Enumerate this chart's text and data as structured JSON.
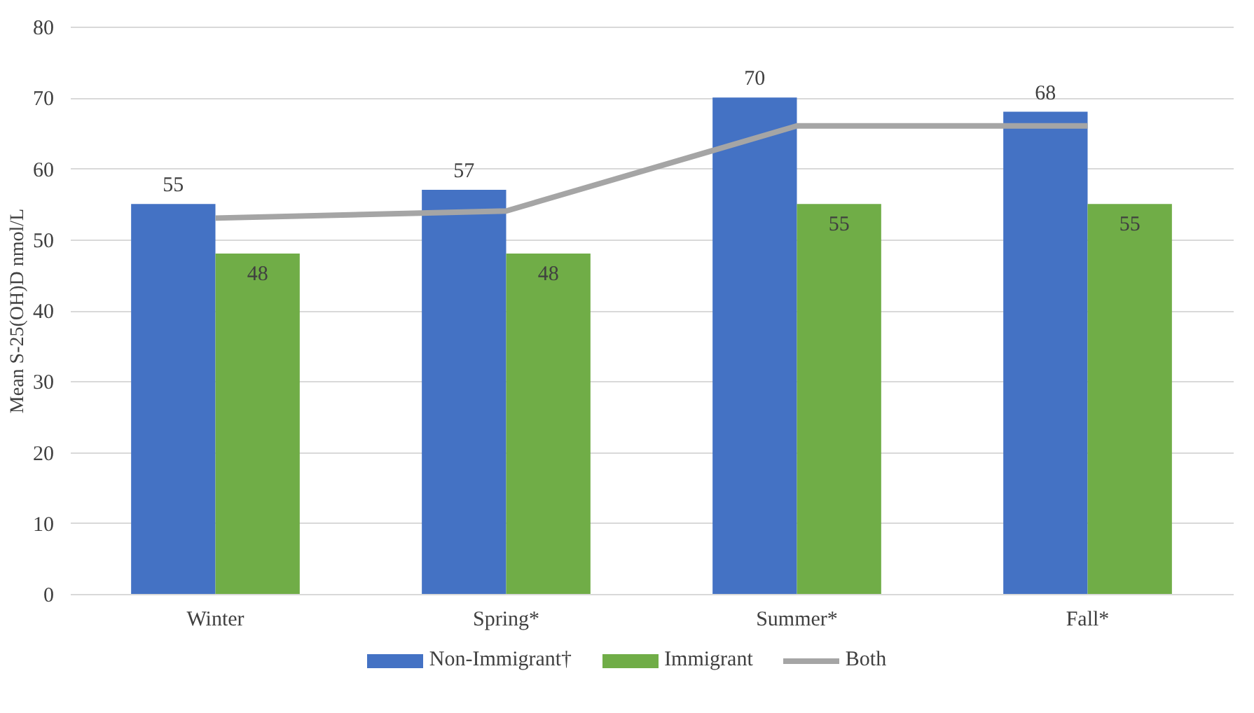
{
  "chart_data": {
    "type": "bar",
    "ylabel": "Mean S-25(OH)D nmol/L",
    "categories": [
      "Winter",
      "Spring*",
      "Summer*",
      "Fall*"
    ],
    "series": [
      {
        "name": "Non-Immigrant†",
        "color": "#4472c4",
        "values": [
          55,
          57,
          70,
          68
        ],
        "value_labels": [
          "55",
          "57",
          "70",
          "68"
        ]
      },
      {
        "name": "Immigrant",
        "color": "#70ad47",
        "values": [
          48,
          48,
          55,
          55
        ],
        "value_labels": [
          "48",
          "48",
          "55",
          "55"
        ]
      },
      {
        "name": "Both",
        "type": "line",
        "color": "#a5a5a5",
        "values": [
          53,
          54,
          66,
          66
        ]
      }
    ],
    "ylim": [
      0,
      80
    ],
    "yticks": [
      0,
      10,
      20,
      30,
      40,
      50,
      60,
      70,
      80
    ],
    "grid": "y",
    "legend": "bottom"
  }
}
